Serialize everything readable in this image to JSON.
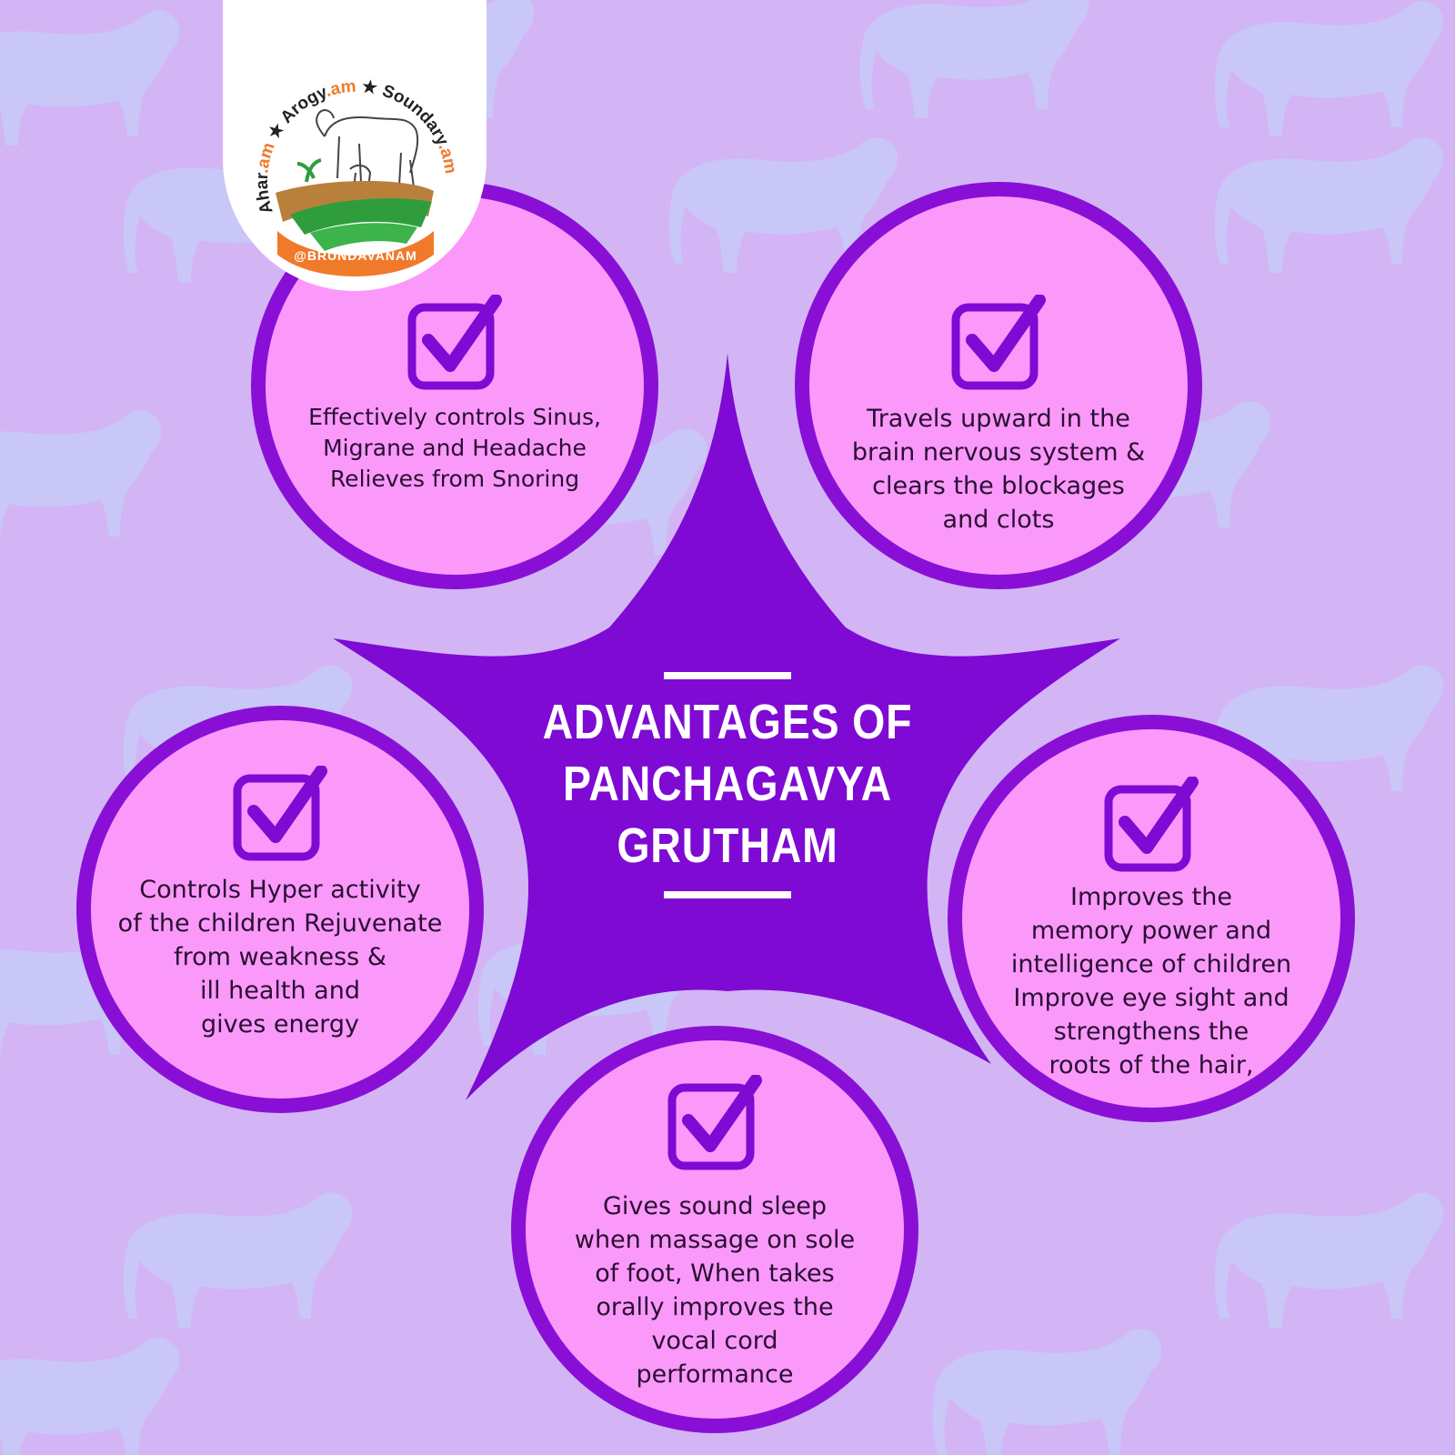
{
  "title": "ADVANTAGES OF\nPANCHAGAVYA\nGRUTHAM",
  "logo": {
    "arc_words": [
      {
        "base": "Ahar",
        "suffix": ".am"
      },
      {
        "base": "Arogy",
        "suffix": ".am"
      },
      {
        "base": "Soundary",
        "suffix": ".am"
      }
    ],
    "ribbon_text": "@BRUNDAVANAM",
    "colors": {
      "accent": "#f07a2a",
      "green": "#2f9d3c",
      "brown": "#b9803b"
    }
  },
  "benefits": [
    {
      "icon": "checkbox-check-icon",
      "text": "Effectively controls Sinus,\nMigrane and Headache\nRelieves from Snoring"
    },
    {
      "icon": "checkbox-check-icon",
      "text": "Travels upward in the\nbrain nervous system &\nclears the blockages\nand clots"
    },
    {
      "icon": "checkbox-check-icon",
      "text": "Controls Hyper activity\nof the children  Rejuvenate\nfrom weakness &\nill health and\ngives energy"
    },
    {
      "icon": "checkbox-check-icon",
      "text": "Improves the\nmemory power and\nintelligence of children\nImprove eye sight and\nstrengthens the\nroots of the hair,"
    },
    {
      "icon": "checkbox-check-icon",
      "text": "Gives sound sleep\nwhen massage on sole\nof foot, When takes\norally improves the\nvocal cord\nperformance"
    }
  ],
  "colors": {
    "background": "#d3b5f5",
    "pattern": "#c8c9f8",
    "star": "#7e0ad4",
    "circle_fill": "#fb99fb",
    "circle_border": "#8a0fd6"
  }
}
